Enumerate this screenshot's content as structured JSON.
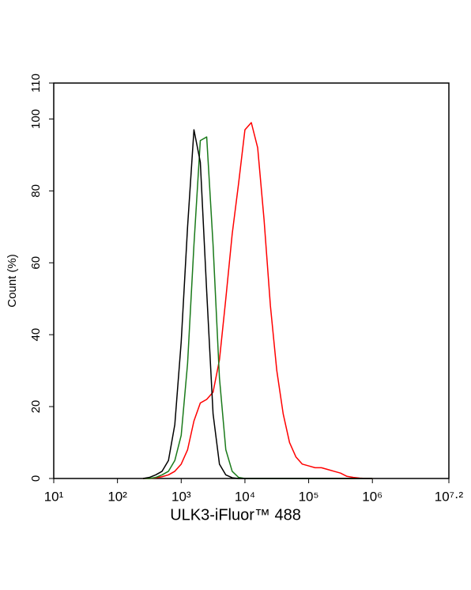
{
  "chart_data": {
    "type": "line",
    "x_label": "ULK3-iFluor™ 488",
    "y_label": "Count (%)",
    "xscale": "log",
    "xlim": [
      10,
      15848932
    ],
    "xticks": [
      {
        "value": 10,
        "label": "10¹"
      },
      {
        "value": 100,
        "label": "10²"
      },
      {
        "value": 1000,
        "label": "10³"
      },
      {
        "value": 10000,
        "label": "10⁴"
      },
      {
        "value": 100000,
        "label": "10⁵"
      },
      {
        "value": 1000000,
        "label": "10⁶"
      },
      {
        "value": 15848932,
        "label": "10⁷·²"
      }
    ],
    "ylim": [
      0,
      110
    ],
    "yticks": [
      0,
      20,
      40,
      60,
      80,
      100,
      110
    ],
    "x": [
      251,
      316,
      398,
      501,
      631,
      794,
      1000,
      1259,
      1585,
      1995,
      2512,
      3162,
      3981,
      5012,
      6310,
      7943,
      10000,
      12589,
      15849,
      19953,
      25119,
      31623,
      39811,
      50119,
      63096,
      79433,
      100000,
      125893,
      158489,
      199526,
      251189,
      316228,
      398107,
      501187,
      630957,
      794328,
      1000000
    ],
    "series": [
      {
        "color": "#ff0000",
        "values": [
          0,
          0,
          0.2,
          0.5,
          1,
          2,
          4,
          8,
          16,
          21,
          22,
          24,
          33,
          50,
          68,
          82,
          97,
          99,
          92,
          72,
          48,
          30,
          18,
          10,
          6,
          4,
          3.5,
          3,
          3,
          2.5,
          2,
          1.5,
          0.6,
          0.3,
          0.1,
          0,
          0
        ]
      },
      {
        "color": "#1a7a1a",
        "values": [
          0,
          0,
          0.3,
          1,
          2,
          5,
          12,
          32,
          65,
          94,
          95,
          65,
          28,
          8,
          2,
          0.3,
          0,
          0,
          0,
          0,
          0,
          0,
          0,
          0,
          0,
          0,
          0,
          0,
          0,
          0,
          0,
          0,
          0,
          0,
          0,
          0,
          0
        ]
      },
      {
        "color": "#000000",
        "values": [
          0,
          0.3,
          1,
          2,
          5,
          15,
          38,
          70,
          97,
          88,
          52,
          18,
          4,
          1,
          0.2,
          0,
          0,
          0,
          0,
          0,
          0,
          0,
          0,
          0,
          0,
          0,
          0,
          0,
          0,
          0,
          0,
          0,
          0,
          0,
          0,
          0,
          0
        ]
      }
    ]
  }
}
